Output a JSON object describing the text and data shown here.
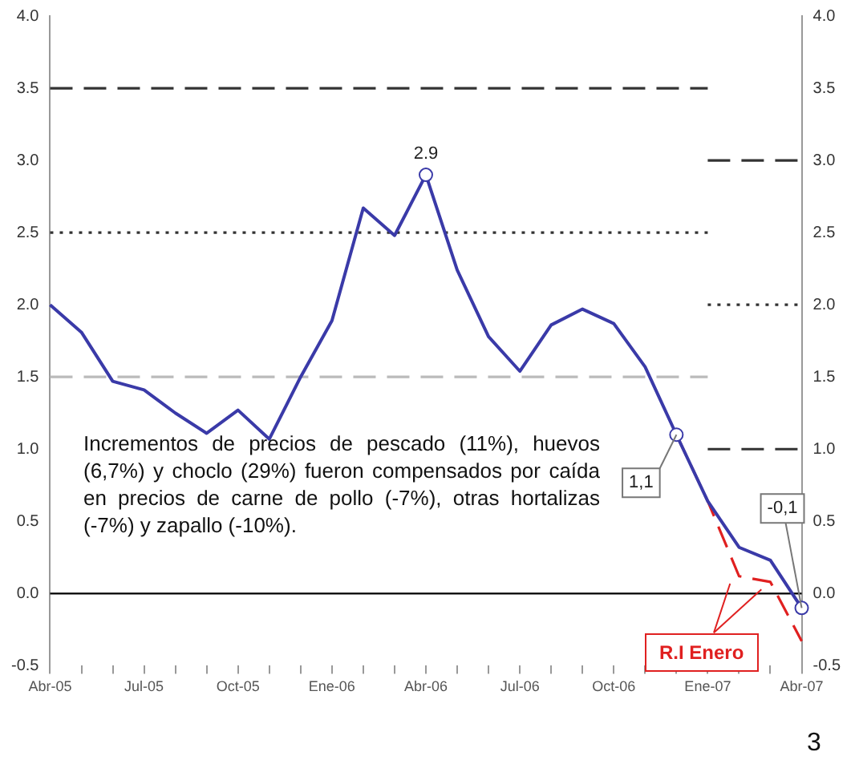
{
  "chart_data": {
    "type": "line",
    "categories": [
      "Abr-05",
      null,
      null,
      "Jul-05",
      null,
      null,
      "Oct-05",
      null,
      null,
      "Ene-06",
      null,
      null,
      "Abr-06",
      null,
      null,
      "Jul-06",
      null,
      null,
      "Oct-06",
      null,
      null,
      "Ene-07",
      null,
      null,
      "Abr-07"
    ],
    "series": [
      {
        "color": "#3a3aa8",
        "line_style": "solid",
        "values": [
          2.0,
          1.81,
          1.47,
          1.41,
          1.25,
          1.11,
          1.27,
          1.07,
          1.5,
          1.89,
          2.67,
          2.48,
          2.9,
          2.24,
          1.78,
          1.54,
          1.86,
          1.97,
          1.87,
          1.57,
          1.1,
          0.64,
          0.32,
          0.23,
          -0.1
        ],
        "value_labels": [
          null,
          null,
          null,
          null,
          null,
          null,
          null,
          null,
          null,
          null,
          null,
          null,
          "2.9",
          null,
          null,
          null,
          null,
          null,
          null,
          null,
          "1,1",
          null,
          null,
          null,
          "-0,1"
        ]
      },
      {
        "color": "#e02020",
        "line_style": "dashed",
        "values": [
          null,
          null,
          null,
          null,
          null,
          null,
          null,
          null,
          null,
          null,
          null,
          null,
          null,
          null,
          null,
          null,
          null,
          null,
          null,
          null,
          1.1,
          0.64,
          0.12,
          0.08,
          -0.33
        ]
      },
      {
        "color": "#333333",
        "line_style": "dashed",
        "values": [
          3.5,
          3.5,
          3.5,
          3.5,
          3.5,
          3.5,
          3.5,
          3.5,
          3.5,
          3.5,
          3.5,
          3.5,
          3.5,
          3.5,
          3.5,
          3.5,
          3.5,
          3.5,
          3.5,
          3.5,
          3.5,
          3.5,
          null,
          null,
          null
        ]
      },
      {
        "color": "#333333",
        "line_style": "dotted",
        "values": [
          2.5,
          2.5,
          2.5,
          2.5,
          2.5,
          2.5,
          2.5,
          2.5,
          2.5,
          2.5,
          2.5,
          2.5,
          2.5,
          2.5,
          2.5,
          2.5,
          2.5,
          2.5,
          2.5,
          2.5,
          2.5,
          2.5,
          null,
          null,
          null
        ]
      },
      {
        "color": "#bbbbbb",
        "line_style": "dashed",
        "values": [
          1.5,
          1.5,
          1.5,
          1.5,
          1.5,
          1.5,
          1.5,
          1.5,
          1.5,
          1.5,
          1.5,
          1.5,
          1.5,
          1.5,
          1.5,
          1.5,
          1.5,
          1.5,
          1.5,
          1.5,
          1.5,
          1.5,
          null,
          null,
          null
        ]
      },
      {
        "color": "#333333",
        "line_style": "dashed",
        "values": [
          null,
          null,
          null,
          null,
          null,
          null,
          null,
          null,
          null,
          null,
          null,
          null,
          null,
          null,
          null,
          null,
          null,
          null,
          null,
          null,
          null,
          3.0,
          3.0,
          3.0,
          3.0
        ]
      },
      {
        "color": "#333333",
        "line_style": "dotted",
        "values": [
          null,
          null,
          null,
          null,
          null,
          null,
          null,
          null,
          null,
          null,
          null,
          null,
          null,
          null,
          null,
          null,
          null,
          null,
          null,
          null,
          null,
          2.0,
          2.0,
          2.0,
          2.0
        ]
      },
      {
        "color": "#333333",
        "line_style": "dashed",
        "values": [
          null,
          null,
          null,
          null,
          null,
          null,
          null,
          null,
          null,
          null,
          null,
          null,
          null,
          null,
          null,
          null,
          null,
          null,
          null,
          null,
          null,
          1.0,
          1.0,
          1.0,
          1.0
        ]
      }
    ],
    "ylim": [
      -0.5,
      4
    ],
    "yticks": [
      {
        "value": -0.5,
        "label": "-0.5"
      },
      {
        "value": 0,
        "label": "0.0"
      },
      {
        "value": 0.5,
        "label": "0.5"
      },
      {
        "value": 1,
        "label": "1.0"
      },
      {
        "value": 1.5,
        "label": "1.5"
      },
      {
        "value": 2,
        "label": "2.0"
      },
      {
        "value": 2.5,
        "label": "2.5"
      },
      {
        "value": 3,
        "label": "3.0"
      },
      {
        "value": 3.5,
        "label": "3.5"
      },
      {
        "value": 4,
        "label": "4.0"
      }
    ],
    "y2lim": [
      -0.5,
      4
    ],
    "y2ticks": [
      {
        "value": -0.5,
        "label": "-0.5"
      },
      {
        "value": 0,
        "label": "0.0"
      },
      {
        "value": 0.5,
        "label": "0.5"
      },
      {
        "value": 1,
        "label": "1.0"
      },
      {
        "value": 1.5,
        "label": "1.5"
      },
      {
        "value": 2,
        "label": "2.0"
      },
      {
        "value": 2.5,
        "label": "2.5"
      },
      {
        "value": 3,
        "label": "3.0"
      },
      {
        "value": 3.5,
        "label": "3.5"
      },
      {
        "value": 4,
        "label": "4.0"
      }
    ],
    "ref_lines": [
      {
        "axis": "y",
        "value": 0,
        "color": "#000000",
        "line_style": "solid"
      }
    ],
    "grid": false,
    "legend": false,
    "annotations": [
      "Incrementos de precios de pescado (11%), huevos (6,7%) y choclo (29%) fueron compensados por caída en precios de carne de pollo (-7%), otras hortalizas (-7%) y zapallo (-10%).",
      "R.I Enero",
      "3"
    ]
  }
}
